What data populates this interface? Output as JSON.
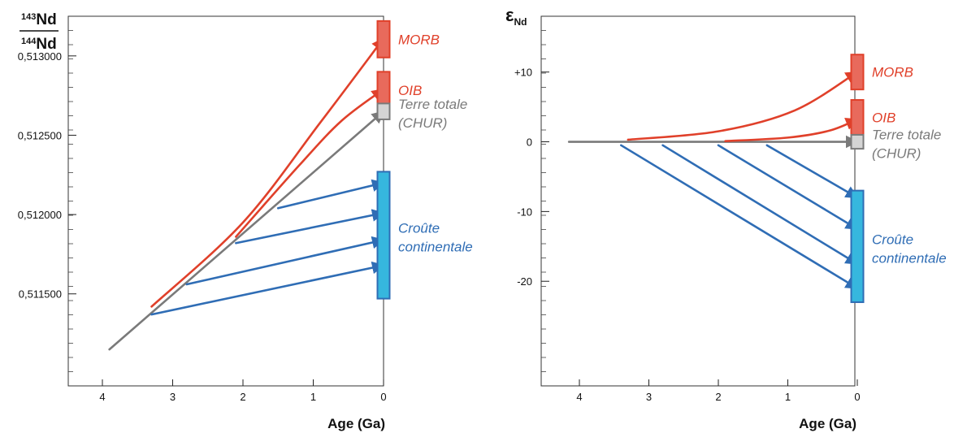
{
  "colors": {
    "mantle": "#e0402a",
    "mantle_fill": "#e86a5c",
    "chur": "#7a7a7a",
    "chur_fill": "#d4d4d4",
    "crust": "#2f6db5",
    "crust_fill": "#36b7de"
  },
  "chart_data": [
    {
      "type": "line",
      "ylabel_top": "143Nd",
      "ylabel_top_sup": "143",
      "ylabel_top_main": "Nd",
      "ylabel_bottom_sup": "144",
      "ylabel_bottom_main": "Nd",
      "xlabel": "Age (Ga)",
      "xlim": [
        4.6,
        0
      ],
      "ylim": [
        0.51092,
        0.51325
      ],
      "x_ticks": [
        "4",
        "3",
        "2",
        "1",
        "0"
      ],
      "y_ticks": [
        "0,513000",
        "0,512500",
        "0,512000",
        "0,511500"
      ],
      "y_tick_values": [
        0.513,
        0.5125,
        0.512,
        0.5115
      ],
      "grid": false,
      "series": [
        {
          "name": "Terre totale",
          "role": "chur",
          "points": [
            [
              3.9,
              0.51115
            ],
            [
              0,
              0.51265
            ]
          ]
        },
        {
          "name": "MORB",
          "role": "mantle",
          "curve": true,
          "points": [
            [
              3.3,
              0.51142
            ],
            [
              2.0,
              0.51195
            ],
            [
              0.9,
              0.51258
            ],
            [
              0,
              0.51311
            ]
          ]
        },
        {
          "name": "OIB",
          "role": "mantle",
          "curve": true,
          "points": [
            [
              2.1,
              0.51186
            ],
            [
              1.2,
              0.51231
            ],
            [
              0.6,
              0.51259
            ],
            [
              0,
              0.51279
            ]
          ]
        },
        {
          "role": "crust",
          "points": [
            [
              3.3,
              0.51137
            ],
            [
              0,
              0.51168
            ]
          ]
        },
        {
          "role": "crust",
          "points": [
            [
              2.8,
              0.51156
            ],
            [
              0,
              0.51184
            ]
          ]
        },
        {
          "role": "crust",
          "points": [
            [
              2.1,
              0.51182
            ],
            [
              0,
              0.51201
            ]
          ]
        },
        {
          "role": "crust",
          "points": [
            [
              1.5,
              0.51204
            ],
            [
              0,
              0.5122
            ]
          ]
        }
      ],
      "reservoirs": [
        {
          "label": "MORB",
          "role": "mantle",
          "range": [
            0.51299,
            0.51322
          ]
        },
        {
          "label": "OIB",
          "role": "mantle",
          "range": [
            0.51267,
            0.5129
          ]
        },
        {
          "label": "Terre totale",
          "label2": "(CHUR)",
          "role": "chur",
          "range": [
            0.5126,
            0.5127
          ]
        },
        {
          "label": "Croûte",
          "label2": "continentale",
          "role": "crust",
          "range": [
            0.51147,
            0.51227
          ]
        }
      ]
    },
    {
      "type": "line",
      "ylabel_main": "ε",
      "ylabel_sub": "Nd",
      "xlabel": "Age (Ga)",
      "xlim": [
        4.6,
        0
      ],
      "ylim": [
        -35,
        18
      ],
      "x_ticks": [
        "4",
        "3",
        "2",
        "1",
        "0"
      ],
      "y_ticks": [
        "+10",
        "0",
        "-10",
        "-20"
      ],
      "y_tick_values": [
        10,
        0,
        -10,
        -20
      ],
      "grid": false,
      "series": [
        {
          "name": "Terre totale",
          "role": "chur",
          "points": [
            [
              4.15,
              0
            ],
            [
              0,
              0
            ]
          ]
        },
        {
          "name": "MORB",
          "role": "mantle",
          "curve": true,
          "points": [
            [
              3.3,
              0.3
            ],
            [
              2.0,
              1.5
            ],
            [
              0.9,
              4.5
            ],
            [
              0,
              10
            ]
          ]
        },
        {
          "name": "OIB",
          "role": "mantle",
          "curve": true,
          "points": [
            [
              1.9,
              0.1
            ],
            [
              1.0,
              0.6
            ],
            [
              0.4,
              1.6
            ],
            [
              0,
              3.2
            ]
          ]
        },
        {
          "role": "crust",
          "points": [
            [
              3.4,
              -0.5
            ],
            [
              0,
              -21
            ]
          ]
        },
        {
          "role": "crust",
          "points": [
            [
              2.8,
              -0.5
            ],
            [
              0,
              -17.5
            ]
          ]
        },
        {
          "role": "crust",
          "points": [
            [
              2.0,
              -0.5
            ],
            [
              0,
              -12.5
            ]
          ]
        },
        {
          "role": "crust",
          "points": [
            [
              1.3,
              -0.5
            ],
            [
              0,
              -8
            ]
          ]
        }
      ],
      "reservoirs": [
        {
          "label": "MORB",
          "role": "mantle",
          "range": [
            7.5,
            12.5
          ]
        },
        {
          "label": "OIB",
          "role": "mantle",
          "range": [
            1.0,
            6.0
          ]
        },
        {
          "label": "Terre totale",
          "label2": "(CHUR)",
          "role": "chur",
          "range": [
            -1.0,
            1.0
          ]
        },
        {
          "label": "Croûte",
          "label2": "continentale",
          "role": "crust",
          "range": [
            -23,
            -7
          ]
        }
      ]
    }
  ]
}
